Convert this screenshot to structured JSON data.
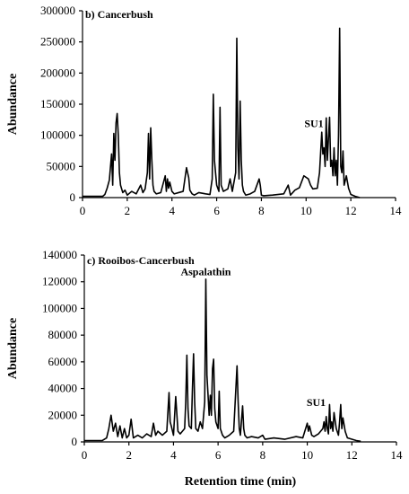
{
  "chart_data": [
    {
      "type": "line",
      "title": "b) Cancerbush",
      "xlabel": "",
      "ylabel": "Abundance",
      "xlim": [
        0,
        14
      ],
      "ylim": [
        0,
        300000
      ],
      "xticks": [
        0,
        2,
        4,
        6,
        8,
        10,
        12,
        14
      ],
      "yticks": [
        0,
        50000,
        100000,
        150000,
        200000,
        250000,
        300000
      ],
      "annotations": [
        {
          "text": "SU1",
          "x": 10.35,
          "y": 113000
        }
      ],
      "series": [
        {
          "x": [
            0,
            0.9,
            1.0,
            1.1,
            1.2,
            1.3,
            1.35,
            1.4,
            1.45,
            1.5,
            1.55,
            1.6,
            1.65,
            1.7,
            1.8,
            1.9,
            2.0,
            2.2,
            2.4,
            2.6,
            2.7,
            2.8,
            2.9,
            2.95,
            3.0,
            3.05,
            3.1,
            3.15,
            3.2,
            3.3,
            3.5,
            3.7,
            3.75,
            3.8,
            3.85,
            3.9,
            4.0,
            4.1,
            4.3,
            4.5,
            4.65,
            4.7,
            4.75,
            4.8,
            4.9,
            5.0,
            5.2,
            5.5,
            5.7,
            5.8,
            5.85,
            5.9,
            5.95,
            6.0,
            6.1,
            6.15,
            6.2,
            6.3,
            6.5,
            6.6,
            6.7,
            6.85,
            6.9,
            6.95,
            7.0,
            7.05,
            7.1,
            7.15,
            7.2,
            7.3,
            7.5,
            7.7,
            7.9,
            7.95,
            8.0,
            8.1,
            8.5,
            9.0,
            9.2,
            9.3,
            9.5,
            9.7,
            9.9,
            10.1,
            10.2,
            10.3,
            10.5,
            10.6,
            10.7,
            10.75,
            10.8,
            10.85,
            10.9,
            10.95,
            11.0,
            11.05,
            11.1,
            11.15,
            11.2,
            11.25,
            11.3,
            11.35,
            11.4,
            11.45,
            11.5,
            11.55,
            11.6,
            11.65,
            11.7,
            11.8,
            11.9,
            12.0,
            12.2,
            12.4
          ],
          "y": [
            2000,
            2000,
            5000,
            15000,
            28000,
            70000,
            20000,
            103000,
            60000,
            120000,
            135000,
            100000,
            40000,
            20000,
            8000,
            12000,
            4000,
            10000,
            6000,
            20000,
            8000,
            14000,
            40000,
            103000,
            30000,
            112000,
            60000,
            20000,
            10000,
            6000,
            8000,
            35000,
            10000,
            30000,
            15000,
            25000,
            10000,
            6000,
            8000,
            10000,
            48000,
            40000,
            32000,
            12000,
            6000,
            4000,
            8000,
            6000,
            5000,
            30000,
            166000,
            60000,
            40000,
            20000,
            10000,
            145000,
            20000,
            10000,
            14000,
            30000,
            10000,
            40000,
            256000,
            80000,
            30000,
            155000,
            60000,
            20000,
            10000,
            4000,
            6000,
            10000,
            30000,
            20000,
            4000,
            3000,
            4000,
            6000,
            20000,
            4000,
            12000,
            16000,
            35000,
            30000,
            20000,
            14000,
            15000,
            40000,
            105000,
            70000,
            80000,
            50000,
            128000,
            60000,
            95000,
            129000,
            50000,
            60000,
            35000,
            80000,
            35000,
            60000,
            20000,
            100000,
            272000,
            50000,
            40000,
            75000,
            20000,
            35000,
            15000,
            5000,
            2000,
            0
          ]
        }
      ]
    },
    {
      "type": "line",
      "title": "c) Rooibos-Cancerbush",
      "xlabel": "Retention time (min)",
      "ylabel": "Abundance",
      "xlim": [
        0,
        14
      ],
      "ylim": [
        0,
        140000
      ],
      "xticks": [
        0,
        2,
        4,
        6,
        8,
        10,
        12,
        14
      ],
      "yticks": [
        0,
        20000,
        40000,
        60000,
        80000,
        100000,
        120000,
        140000
      ],
      "annotations": [
        {
          "text": "Aspalathin",
          "x": 5.45,
          "y": 125000
        },
        {
          "text": "SU1",
          "x": 10.4,
          "y": 27000
        }
      ],
      "series": [
        {
          "x": [
            0,
            0.8,
            1.0,
            1.1,
            1.2,
            1.3,
            1.4,
            1.5,
            1.6,
            1.7,
            1.8,
            1.9,
            2.0,
            2.1,
            2.2,
            2.4,
            2.6,
            2.8,
            3.0,
            3.1,
            3.2,
            3.3,
            3.5,
            3.7,
            3.8,
            3.85,
            3.9,
            4.0,
            4.1,
            4.2,
            4.3,
            4.5,
            4.55,
            4.6,
            4.65,
            4.7,
            4.8,
            4.85,
            4.9,
            4.95,
            5.0,
            5.1,
            5.2,
            5.3,
            5.4,
            5.45,
            5.5,
            5.55,
            5.6,
            5.65,
            5.7,
            5.75,
            5.8,
            5.85,
            5.9,
            6.0,
            6.05,
            6.1,
            6.2,
            6.3,
            6.5,
            6.7,
            6.85,
            6.9,
            6.95,
            7.0,
            7.1,
            7.15,
            7.2,
            7.3,
            7.5,
            7.8,
            8.0,
            8.1,
            8.5,
            9.0,
            9.5,
            9.8,
            10.0,
            10.05,
            10.1,
            10.2,
            10.3,
            10.5,
            10.7,
            10.75,
            10.8,
            10.85,
            10.9,
            10.95,
            11.0,
            11.05,
            11.1,
            11.15,
            11.2,
            11.3,
            11.4,
            11.45,
            11.5,
            11.55,
            11.6,
            11.7,
            11.8,
            12.0,
            12.2,
            12.4
          ],
          "y": [
            1000,
            1000,
            3000,
            10000,
            20000,
            8000,
            14000,
            4000,
            12000,
            3000,
            10000,
            3000,
            5000,
            17000,
            3000,
            5000,
            3000,
            6000,
            4000,
            14000,
            5000,
            8000,
            5000,
            8000,
            37000,
            15000,
            12000,
            5000,
            34000,
            8000,
            6000,
            10000,
            30000,
            65000,
            25000,
            12000,
            10000,
            40000,
            66000,
            30000,
            10000,
            8000,
            15000,
            10000,
            30000,
            122000,
            50000,
            35000,
            20000,
            35000,
            20000,
            55000,
            62000,
            25000,
            15000,
            10000,
            38000,
            10000,
            5000,
            3000,
            5000,
            8000,
            57000,
            30000,
            10000,
            5000,
            27000,
            10000,
            5000,
            3000,
            4000,
            3000,
            5000,
            2000,
            3000,
            2000,
            4000,
            3000,
            14000,
            8000,
            12000,
            5000,
            4000,
            6000,
            10000,
            15000,
            8000,
            19000,
            10000,
            6000,
            28000,
            10000,
            15000,
            8000,
            22000,
            10000,
            5000,
            15000,
            28000,
            10000,
            18000,
            8000,
            3000,
            2000,
            1000,
            500
          ]
        }
      ]
    }
  ]
}
